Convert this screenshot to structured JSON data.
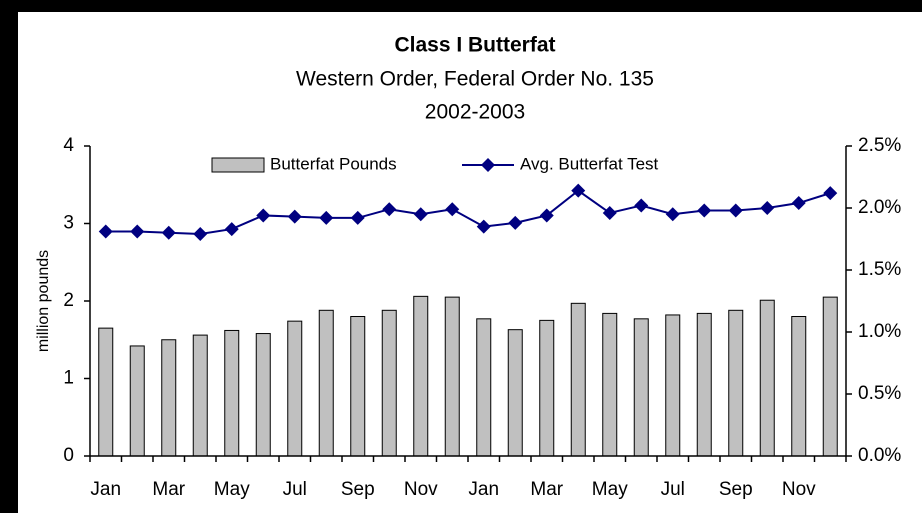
{
  "chart_data": {
    "type": "bar",
    "title": "Class I Butterfat",
    "subtitle": [
      "Western Order, Federal Order No. 135",
      "2002-2003"
    ],
    "y_label": "million pounds",
    "categories": [
      "Jan",
      null,
      "Mar",
      null,
      "May",
      null,
      "Jul",
      null,
      "Sep",
      null,
      "Nov",
      null,
      "Jan",
      null,
      "Mar",
      null,
      "May",
      null,
      "Jul",
      null,
      "Sep",
      null,
      "Nov",
      null
    ],
    "series": [
      {
        "name": "Butterfat Pounds",
        "type": "bar",
        "color": "#c0c0c0",
        "axis": "y",
        "values": [
          1.65,
          1.42,
          1.5,
          1.56,
          1.62,
          1.58,
          1.74,
          1.88,
          1.8,
          1.88,
          2.06,
          2.05,
          1.77,
          1.63,
          1.75,
          1.97,
          1.84,
          1.77,
          1.82,
          1.84,
          1.88,
          2.01,
          1.8,
          2.05
        ]
      },
      {
        "name": "Avg. Butterfat Test",
        "type": "line",
        "color": "#000080",
        "axis": "y2",
        "values": [
          1.81,
          1.81,
          1.8,
          1.79,
          1.83,
          1.94,
          1.93,
          1.92,
          1.92,
          1.99,
          1.95,
          1.99,
          1.85,
          1.88,
          1.94,
          2.14,
          1.96,
          2.02,
          1.95,
          1.98,
          1.98,
          2.0,
          2.04,
          2.12
        ]
      }
    ],
    "ylim": [
      0,
      4
    ],
    "yticks": [
      0,
      1,
      2,
      3,
      4
    ],
    "y2lim": [
      0,
      2.5
    ],
    "y2ticks": [
      {
        "value": 0,
        "label": "0.0%"
      },
      {
        "value": 0.5,
        "label": "0.5%"
      },
      {
        "value": 1,
        "label": "1.0%"
      },
      {
        "value": 1.5,
        "label": "1.5%"
      },
      {
        "value": 2,
        "label": "2.0%"
      },
      {
        "value": 2.5,
        "label": "2.5%"
      }
    ],
    "legend": "top"
  }
}
